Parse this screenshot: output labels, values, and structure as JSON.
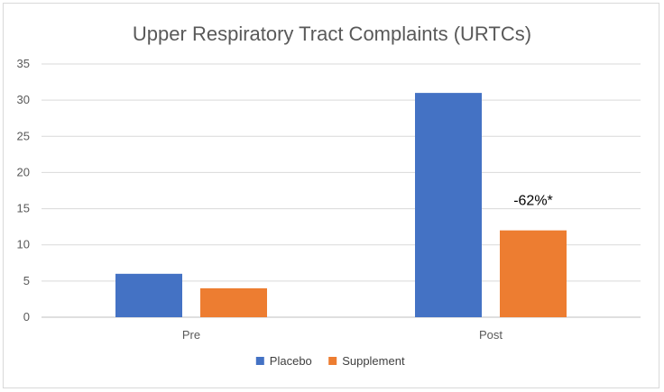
{
  "chart_data": {
    "type": "bar",
    "title": "Upper Respiratory Tract Complaints (URTCs)",
    "categories": [
      "Pre",
      "Post"
    ],
    "series": [
      {
        "name": "Placebo",
        "color": "#4472C4",
        "values": [
          6,
          31
        ]
      },
      {
        "name": "Supplement",
        "color": "#ED7D31",
        "values": [
          4,
          12
        ]
      }
    ],
    "ylim": [
      0,
      35
    ],
    "yticks": [
      0,
      5,
      10,
      15,
      20,
      25,
      30,
      35
    ],
    "grid": true,
    "legend_position": "bottom",
    "annotations": [
      {
        "text": "-62%*",
        "category": "Post",
        "series": "Supplement"
      }
    ]
  }
}
